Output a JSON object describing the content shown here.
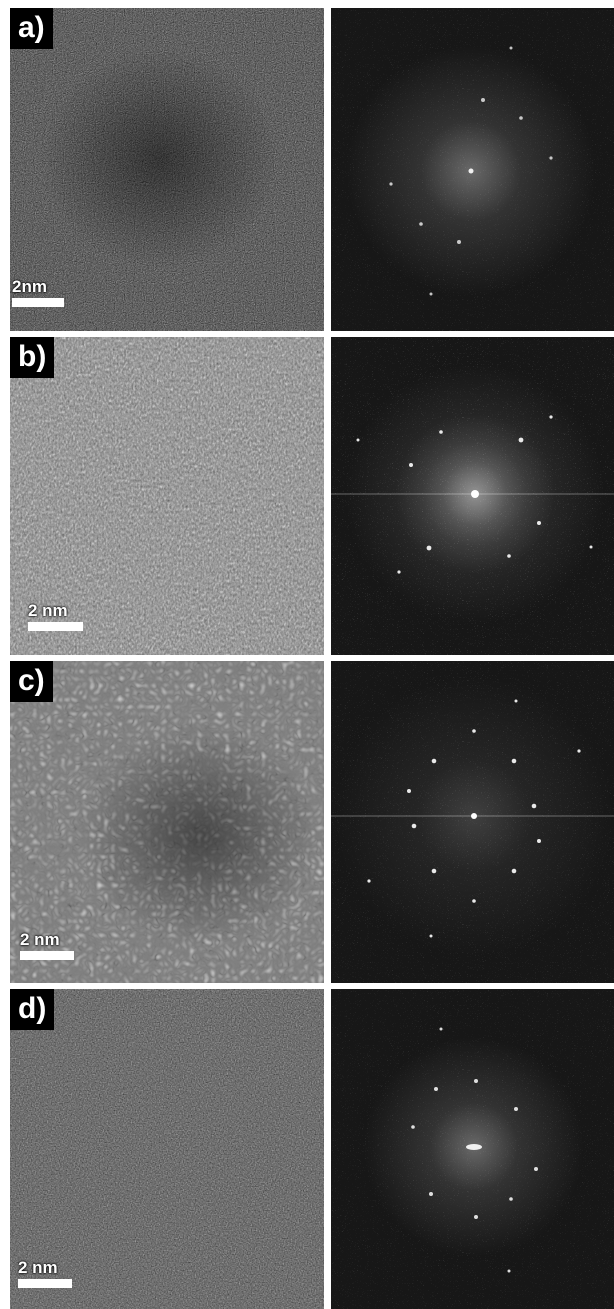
{
  "panels": [
    {
      "label": "a)",
      "scale_text": "2nm"
    },
    {
      "label": "b)",
      "scale_text": "2 nm"
    },
    {
      "label": "c)",
      "scale_text": "2 nm"
    },
    {
      "label": "d)",
      "scale_text": "2 nm"
    }
  ]
}
